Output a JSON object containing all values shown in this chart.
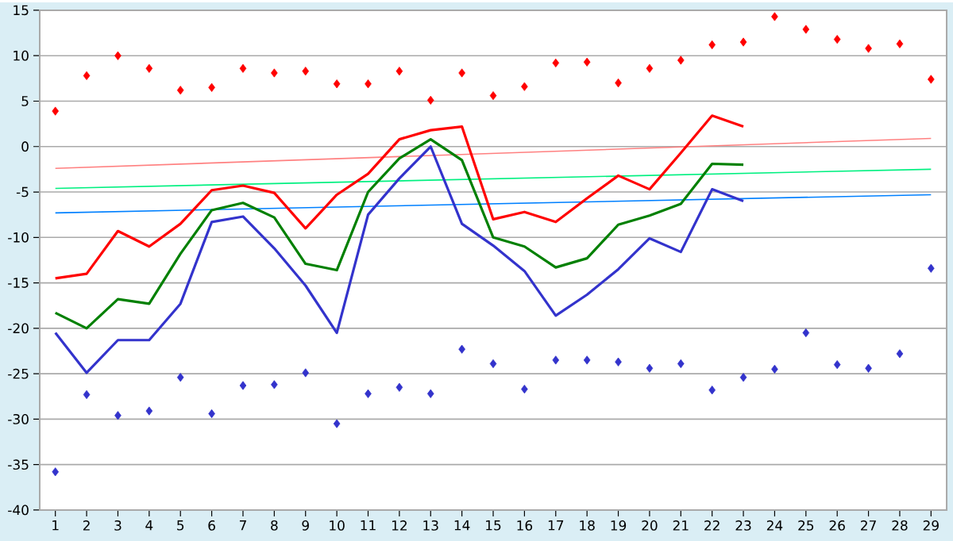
{
  "chart_data": {
    "type": "line",
    "x": [
      1,
      2,
      3,
      4,
      5,
      6,
      7,
      8,
      9,
      10,
      11,
      12,
      13,
      14,
      15,
      16,
      17,
      18,
      19,
      20,
      21,
      22,
      23,
      24,
      25,
      26,
      27,
      28,
      29
    ],
    "xlim": [
      0.5,
      29.5
    ],
    "xticks": [
      1,
      2,
      3,
      4,
      5,
      6,
      7,
      8,
      9,
      10,
      11,
      12,
      13,
      14,
      15,
      16,
      17,
      18,
      19,
      20,
      21,
      22,
      23,
      24,
      25,
      26,
      27,
      28,
      29
    ],
    "ylim": [
      -40,
      15
    ],
    "yticks": [
      -40,
      -35,
      -30,
      -25,
      -20,
      -15,
      -10,
      -5,
      0,
      5,
      10,
      15
    ],
    "grid": "y",
    "series": [
      {
        "type": "scatter",
        "marker": "diamond",
        "color": "#ff0000",
        "values": [
          3.9,
          7.8,
          10.0,
          8.6,
          6.2,
          6.5,
          8.6,
          8.1,
          8.3,
          6.9,
          6.9,
          8.3,
          5.1,
          8.1,
          5.6,
          6.6,
          9.2,
          9.3,
          7.0,
          8.6,
          9.5,
          11.2,
          11.5,
          14.3,
          12.9,
          11.8,
          10.8,
          11.3,
          7.4
        ]
      },
      {
        "type": "scatter",
        "marker": "diamond",
        "color": "#3333cc",
        "values": [
          -35.8,
          -27.3,
          -29.6,
          -29.1,
          -25.4,
          -29.4,
          -26.3,
          -26.2,
          -24.9,
          -30.5,
          -27.2,
          -26.5,
          -27.2,
          -22.3,
          -23.9,
          -26.7,
          -23.5,
          -23.5,
          -23.7,
          -24.4,
          -23.9,
          -26.8,
          -25.4,
          -24.5,
          -20.5,
          -24.0,
          -24.4,
          -22.8,
          -13.4
        ]
      },
      {
        "type": "line",
        "color": "#ff8080",
        "values": [
          -2.4,
          null,
          null,
          null,
          null,
          null,
          null,
          null,
          null,
          null,
          null,
          null,
          null,
          null,
          null,
          null,
          null,
          null,
          null,
          null,
          null,
          null,
          null,
          null,
          null,
          null,
          null,
          null,
          0.9
        ]
      },
      {
        "type": "line",
        "color": "#00f080",
        "values": [
          -4.6,
          null,
          null,
          null,
          null,
          null,
          null,
          null,
          null,
          null,
          null,
          null,
          null,
          null,
          null,
          null,
          null,
          null,
          null,
          null,
          null,
          null,
          null,
          null,
          null,
          null,
          null,
          null,
          -2.5
        ]
      },
      {
        "type": "line",
        "color": "#0080ff",
        "values": [
          -7.3,
          null,
          null,
          null,
          null,
          null,
          null,
          null,
          null,
          null,
          null,
          null,
          null,
          null,
          null,
          null,
          null,
          null,
          null,
          null,
          null,
          null,
          null,
          null,
          null,
          null,
          null,
          null,
          -5.3
        ]
      },
      {
        "type": "line",
        "color": "#ff0000",
        "values": [
          -14.5,
          -14.0,
          -9.3,
          -11.0,
          -8.5,
          -4.8,
          -4.3,
          -5.1,
          -9.0,
          -5.3,
          -3.0,
          0.8,
          1.8,
          2.2,
          -8.0,
          -7.2,
          -8.3,
          -5.7,
          -3.2,
          -4.7,
          -0.7,
          3.4,
          2.2,
          null,
          null,
          null,
          null,
          null,
          null
        ]
      },
      {
        "type": "line",
        "color": "#008000",
        "values": [
          -18.3,
          -20.0,
          -16.8,
          -17.3,
          -11.8,
          -7.0,
          -6.2,
          -7.8,
          -12.9,
          -13.6,
          -5.0,
          -1.3,
          0.8,
          -1.5,
          -10.0,
          -11.0,
          -13.3,
          -12.3,
          -8.6,
          -7.6,
          -6.3,
          -1.9,
          -2.0,
          null,
          null,
          null,
          null,
          null,
          null
        ]
      },
      {
        "type": "line",
        "color": "#3333cc",
        "values": [
          -20.5,
          -24.9,
          -21.3,
          -21.3,
          -17.3,
          -8.3,
          -7.7,
          -11.2,
          -15.3,
          -20.5,
          -7.5,
          -3.5,
          0.0,
          -8.5,
          -10.9,
          -13.7,
          -18.6,
          -16.3,
          -13.5,
          -10.1,
          -11.6,
          -4.7,
          -6.0,
          null,
          null,
          null,
          null,
          null,
          null
        ]
      }
    ]
  }
}
